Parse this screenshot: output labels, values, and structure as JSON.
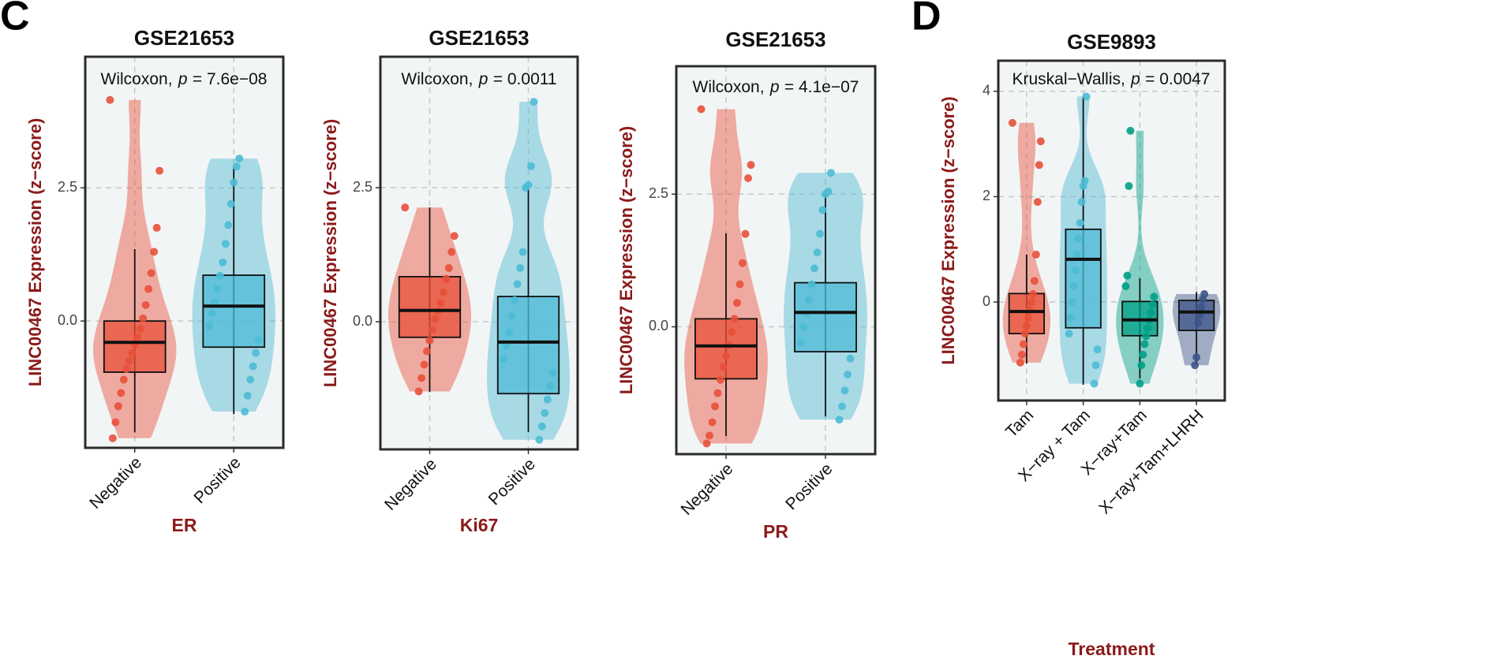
{
  "chart_data": [
    {
      "type": "violin",
      "panel_label": "C",
      "title": "GSE21653",
      "annotation": {
        "test": "Wilcoxon,",
        "p_symbol": "p",
        "p_text": "= 7.6e−08"
      },
      "y_label": "LINC00467 Expression (z−score)",
      "x_label": "ER",
      "categories": [
        "Negative",
        "Positive"
      ],
      "colors": [
        "#e8503a",
        "#4dbbd5"
      ],
      "ylim": [
        -2.38,
        4.96
      ],
      "yticks": [
        {
          "value": 0,
          "label": "0.0"
        },
        2.5
      ],
      "grid": true,
      "boxes": [
        {
          "whislo": -2.09,
          "q1": -0.96,
          "median": -0.4,
          "q3": 0.0,
          "whishi": 1.35
        },
        {
          "whislo": -1.75,
          "q1": -0.49,
          "median": 0.28,
          "q3": 0.86,
          "whishi": 2.88
        }
      ],
      "points": [
        [
          4.15,
          2.82,
          1.75,
          1.3,
          0.9,
          0.6,
          0.3,
          0.05,
          -0.15,
          -0.3,
          -0.45,
          -0.6,
          -0.75,
          -0.9,
          -1.1,
          -1.35,
          -1.6,
          -1.9,
          -2.2
        ],
        [
          3.05,
          2.9,
          2.6,
          2.2,
          1.8,
          1.45,
          1.1,
          0.85,
          0.6,
          0.35,
          0.15,
          -0.1,
          -0.35,
          -0.6,
          -0.85,
          -1.1,
          -1.4,
          -1.7
        ]
      ]
    },
    {
      "type": "violin",
      "title": "GSE21653",
      "annotation": {
        "test": "Wilcoxon,",
        "p_symbol": "p",
        "p_text": "= 0.0011"
      },
      "y_label": "LINC00467 Expression (z−score)",
      "x_label": "Ki67",
      "categories": [
        "Negative",
        "Positive"
      ],
      "colors": [
        "#e8503a",
        "#4dbbd5"
      ],
      "ylim": [
        -2.38,
        4.94
      ],
      "yticks": [
        {
          "value": 0,
          "label": "0.0"
        },
        2.5
      ],
      "grid": true,
      "boxes": [
        {
          "whislo": -1.31,
          "q1": -0.29,
          "median": 0.21,
          "q3": 0.84,
          "whishi": 2.13
        },
        {
          "whislo": -2.06,
          "q1": -1.34,
          "median": -0.38,
          "q3": 0.47,
          "whishi": 2.5
        }
      ],
      "points": [
        [
          2.13,
          1.6,
          1.3,
          1.0,
          0.8,
          0.55,
          0.35,
          0.2,
          0.05,
          -0.15,
          -0.35,
          -0.55,
          -0.8,
          -1.05,
          -1.3
        ],
        [
          4.1,
          2.9,
          2.55,
          2.5,
          1.3,
          1.0,
          0.7,
          0.4,
          0.1,
          -0.2,
          -0.45,
          -0.7,
          -0.95,
          -1.2,
          -1.45,
          -1.7,
          -1.95,
          -2.2
        ]
      ]
    },
    {
      "type": "violin",
      "title": "GSE21653",
      "annotation": {
        "test": "Wilcoxon,",
        "p_symbol": "p",
        "p_text": "= 4.1e−07"
      },
      "y_label": "LINC00467 Expression (z−score)",
      "x_label": "PR",
      "categories": [
        "Negative",
        "Positive"
      ],
      "colors": [
        "#e8503a",
        "#4dbbd5"
      ],
      "ylim": [
        -2.4,
        4.91
      ],
      "yticks": [
        {
          "value": 0,
          "label": "0.0"
        },
        2.5
      ],
      "grid": true,
      "boxes": [
        {
          "whislo": -2.06,
          "q1": -0.98,
          "median": -0.36,
          "q3": 0.15,
          "whishi": 1.76
        },
        {
          "whislo": -1.69,
          "q1": -0.47,
          "median": 0.27,
          "q3": 0.83,
          "whishi": 2.53
        }
      ],
      "points": [
        [
          4.1,
          3.05,
          2.8,
          1.75,
          1.2,
          0.8,
          0.45,
          0.15,
          -0.1,
          -0.35,
          -0.55,
          -0.75,
          -1.0,
          -1.25,
          -1.5,
          -1.8,
          -2.05,
          -2.2
        ],
        [
          2.9,
          2.55,
          2.5,
          2.2,
          1.75,
          1.4,
          1.1,
          0.8,
          0.5,
          0.25,
          0.0,
          -0.3,
          -0.6,
          -0.9,
          -1.2,
          -1.5,
          -1.75
        ]
      ]
    },
    {
      "type": "violin",
      "panel_label": "D",
      "title": "GSE9893",
      "annotation": {
        "test": "Kruskal−Wallis,",
        "p_symbol": "p",
        "p_text": "= 0.0047"
      },
      "y_label": "LINC00467 Expression (z−score)",
      "x_label": "Treatment",
      "categories": [
        "Tam",
        "X−ray + Tam",
        "X−ray+Tam",
        "X−ray+Tam+LHRH"
      ],
      "colors": [
        "#e8503a",
        "#4dbbd5",
        "#00a087",
        "#3c5488"
      ],
      "ylim": [
        -1.87,
        4.58
      ],
      "yticks": [
        0,
        2,
        4
      ],
      "grid": true,
      "boxes": [
        {
          "whislo": -1.17,
          "q1": -0.6,
          "median": -0.18,
          "q3": 0.16,
          "whishi": 0.9
        },
        {
          "whislo": -1.57,
          "q1": -0.49,
          "median": 0.81,
          "q3": 1.38,
          "whishi": 3.9
        },
        {
          "whislo": -1.45,
          "q1": -0.64,
          "median": -0.34,
          "q3": 0.01,
          "whishi": 0.45
        },
        {
          "whislo": -1.18,
          "q1": -0.54,
          "median": -0.19,
          "q3": 0.03,
          "whishi": 0.19
        }
      ],
      "points": [
        [
          3.4,
          3.05,
          2.6,
          1.9,
          0.9,
          0.4,
          0.15,
          0.0,
          -0.15,
          -0.3,
          -0.45,
          -0.6,
          -0.8,
          -1.0,
          -1.15
        ],
        [
          3.9,
          2.3,
          2.2,
          1.9,
          1.5,
          1.2,
          0.9,
          0.6,
          0.3,
          0.0,
          -0.3,
          -0.6,
          -0.9,
          -1.2,
          -1.55
        ],
        [
          3.25,
          2.2,
          0.5,
          0.3,
          0.1,
          -0.05,
          -0.2,
          -0.35,
          -0.5,
          -0.65,
          -0.8,
          -1.0,
          -1.2,
          -1.55
        ],
        [
          0.15,
          0.05,
          -0.1,
          -0.25,
          -0.4,
          -1.05,
          -1.2
        ]
      ]
    }
  ]
}
